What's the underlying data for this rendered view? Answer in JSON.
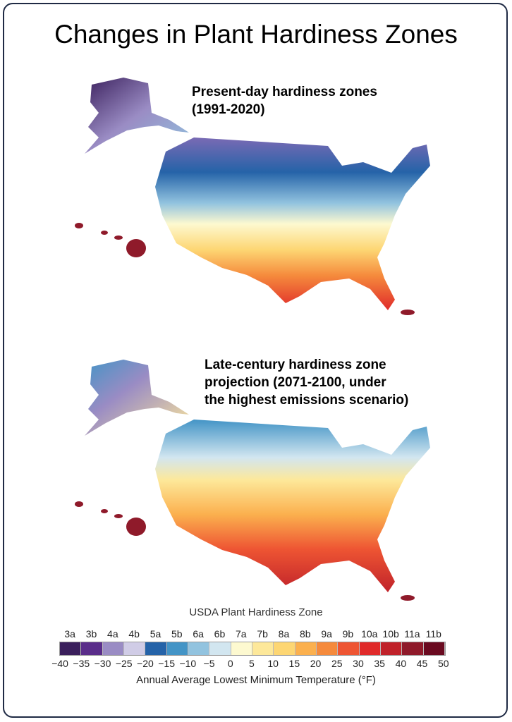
{
  "title": "Changes in Plant Hardiness Zones",
  "maps": [
    {
      "caption_lines": [
        "Present-day hardiness zones",
        "(1991-2020)"
      ]
    },
    {
      "caption_lines": [
        "Late-century hardiness zone",
        "projection (2071-2100, under",
        "the highest emissions scenario)"
      ]
    }
  ],
  "legend": {
    "title": "USDA Plant Hardiness Zone",
    "zones": [
      "3a",
      "3b",
      "4a",
      "4b",
      "5a",
      "5b",
      "6a",
      "6b",
      "7a",
      "7b",
      "8a",
      "8b",
      "9a",
      "9b",
      "10a",
      "10b",
      "11a",
      "11b"
    ],
    "colors": [
      "#3a1f5c",
      "#5a2d8a",
      "#9a8cc4",
      "#d0cce6",
      "#2563a8",
      "#4394c6",
      "#92c3df",
      "#d2e6f0",
      "#fdf9d0",
      "#fde89a",
      "#fdd673",
      "#fbb04e",
      "#f58a3c",
      "#ee5533",
      "#e02a2a",
      "#c0222a",
      "#8f1a2a",
      "#6a0a20"
    ],
    "temperatures": [
      "−40",
      "−35",
      "−30",
      "−25",
      "−20",
      "−15",
      "−10",
      "−5",
      "0",
      "5",
      "10",
      "15",
      "20",
      "25",
      "30",
      "35",
      "40",
      "45",
      "50"
    ],
    "axis_label": "Annual Average Lowest Minimum Temperature (°F)"
  }
}
